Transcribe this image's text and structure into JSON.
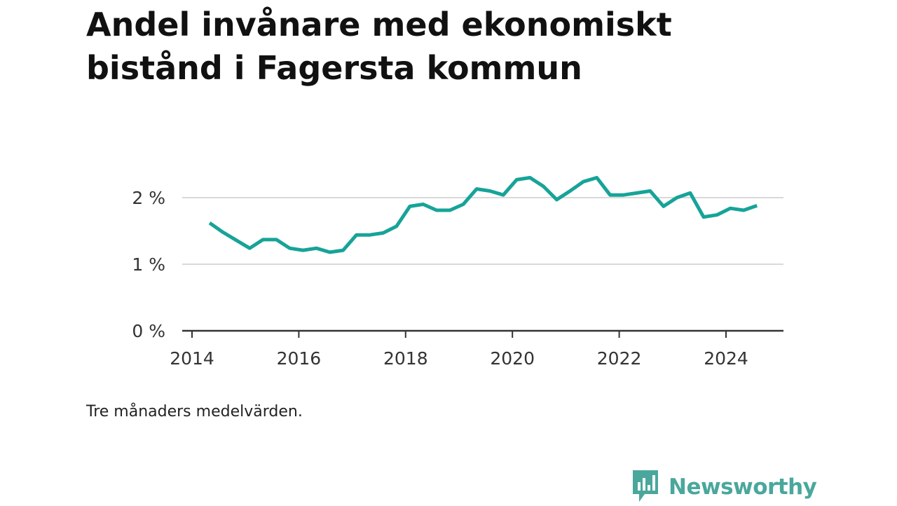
{
  "title": "Andel invånare med ekonomiskt bistånd i Fagersta kommun",
  "note": "Tre månaders medelvärden.",
  "brand": {
    "name": "Newsworthy",
    "icon": "chart-bubble-icon",
    "color": "#4aa79c"
  },
  "colors": {
    "line": "#17a398",
    "grid": "#d9d9d9",
    "axis": "#333333"
  },
  "chart_data": {
    "type": "line",
    "title": "Andel invånare med ekonomiskt bistånd i Fagersta kommun",
    "xlabel": "",
    "ylabel": "",
    "xlim": [
      2014.0,
      2025.1
    ],
    "ylim": [
      0,
      2.4
    ],
    "x_ticks": [
      2014,
      2016,
      2018,
      2020,
      2022,
      2024
    ],
    "y_ticks": [
      {
        "value": 0,
        "label": "0 %"
      },
      {
        "value": 1,
        "label": "1 %"
      },
      {
        "value": 2,
        "label": "2 %"
      }
    ],
    "grid": true,
    "series": [
      {
        "name": "",
        "x": [
          2014.33,
          2014.58,
          2014.83,
          2015.08,
          2015.33,
          2015.58,
          2015.83,
          2016.08,
          2016.33,
          2016.58,
          2016.83,
          2017.08,
          2017.33,
          2017.58,
          2017.83,
          2018.08,
          2018.33,
          2018.58,
          2018.83,
          2019.08,
          2019.33,
          2019.58,
          2019.83,
          2020.08,
          2020.33,
          2020.58,
          2020.83,
          2021.08,
          2021.33,
          2021.58,
          2021.83,
          2022.08,
          2022.33,
          2022.58,
          2022.83,
          2023.08,
          2023.33,
          2023.58,
          2023.83,
          2024.08,
          2024.33,
          2024.58
        ],
        "values": [
          1.62,
          1.48,
          1.36,
          1.24,
          1.37,
          1.37,
          1.24,
          1.21,
          1.24,
          1.18,
          1.21,
          1.44,
          1.44,
          1.47,
          1.57,
          1.87,
          1.9,
          1.81,
          1.81,
          1.9,
          2.13,
          2.1,
          2.04,
          2.27,
          2.3,
          2.17,
          1.97,
          2.1,
          2.24,
          2.3,
          2.04,
          2.04,
          2.07,
          2.1,
          1.87,
          2.0,
          2.07,
          1.71,
          1.74,
          1.84,
          1.81,
          1.88
        ]
      }
    ]
  }
}
